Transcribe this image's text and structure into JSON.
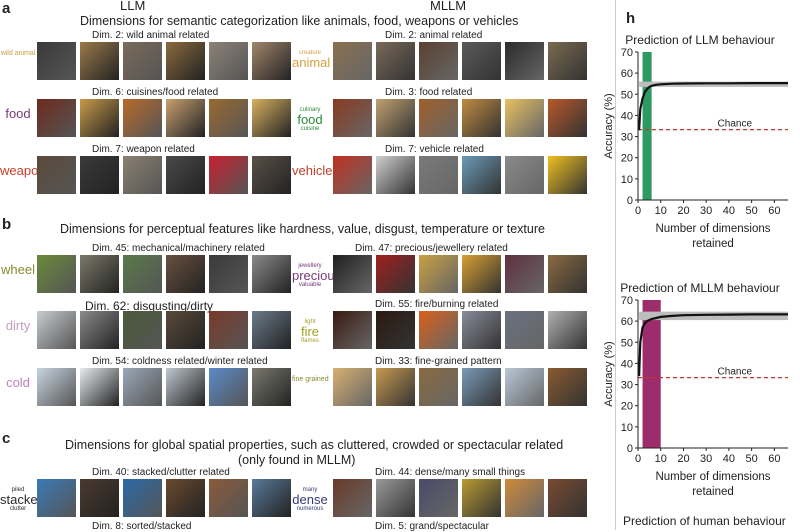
{
  "panel_letters": {
    "a": "a",
    "b": "b",
    "c": "c",
    "h": "h"
  },
  "columns": {
    "left": "LLM",
    "right": "MLLM"
  },
  "sections": {
    "a": {
      "title": "Dimensions for semantic categorization like animals, food, weapons or vehicles"
    },
    "b": {
      "title": "Dimensions for perceptual features like hardness, value, disgust, temperature or texture"
    },
    "c": {
      "title_line1": "Dimensions for global spatial properties, such as cluttered, crowded or spectacular related",
      "title_line2": "(only found in MLLM)"
    }
  },
  "rows": [
    {
      "left_label": "Dim. 2: wild animal related",
      "left_cloud": [
        "wild animal"
      ],
      "right_label": "Dim. 2: animal related",
      "right_cloud": [
        "creature",
        "animal"
      ]
    },
    {
      "left_label": "Dim. 6: cuisines/food related",
      "left_cloud": [
        "food"
      ],
      "right_label": "Dim. 3: food related",
      "right_cloud": [
        "culinary",
        "food",
        "cuisine"
      ]
    },
    {
      "left_label": "Dim. 7: weapon related",
      "left_cloud": [
        "weapon"
      ],
      "right_label": "Dim. 7: vehicle related",
      "right_cloud": [
        "vehicle"
      ]
    },
    {
      "left_label": "Dim. 45: mechanical/machinery related",
      "left_cloud": [
        "wheel"
      ],
      "right_label": "Dim. 47: precious/jewellery related",
      "right_cloud": [
        "jewellery",
        "precious",
        "valuable"
      ]
    },
    {
      "left_label": "Dim. 62: disgusting/dirty",
      "left_cloud": [
        "dirty"
      ],
      "right_label": "Dim. 55: fire/burning related",
      "right_cloud": [
        "light",
        "fire",
        "flames"
      ]
    },
    {
      "left_label": "Dim. 54: coldness related/winter related",
      "left_cloud": [
        "cold"
      ],
      "right_label": "Dim. 33: fine-grained pattern",
      "right_cloud": [
        "fine grained"
      ]
    },
    {
      "left_label": "Dim. 40: stacked/clutter related",
      "left_cloud": [
        "piled",
        "stacked",
        "clutter"
      ],
      "right_label": "Dim. 44: dense/many small things",
      "right_cloud": [
        "many",
        "dense",
        "numerous"
      ]
    },
    {
      "left_label": "Dim. 8: sorted/stacked",
      "left_cloud": [],
      "right_label": "Dim. 5: grand/spectacular",
      "right_cloud": []
    }
  ],
  "chart_data": [
    {
      "type": "line",
      "title": "Prediction of LLM behaviour",
      "xlabel": "Number of dimensions retained",
      "ylabel": "Accuracy (%)",
      "xlim": [
        0,
        66
      ],
      "ylim": [
        0,
        70
      ],
      "xticks": [
        0,
        10,
        20,
        30,
        40,
        50,
        60
      ],
      "yticks": [
        0,
        10,
        20,
        30,
        40,
        50,
        60,
        70
      ],
      "chance": {
        "label": "Chance",
        "value": 33.3
      },
      "highlight": {
        "x_range": [
          2,
          6
        ],
        "color": "#2e9a63"
      },
      "band": {
        "lower": 53.5,
        "upper": 56.0
      },
      "series": [
        {
          "x": [
            0.5,
            1,
            2,
            3,
            4,
            5,
            6,
            8,
            10,
            15,
            20,
            30,
            40,
            50,
            60,
            66
          ],
          "values": [
            33,
            43,
            48,
            51,
            52.5,
            53.5,
            54,
            54.5,
            54.7,
            55,
            55.1,
            55.2,
            55.2,
            55.3,
            55.3,
            55.3
          ]
        }
      ]
    },
    {
      "type": "line",
      "title": "Prediction of MLLM behaviour",
      "xlabel": "Number of dimensions retained",
      "ylabel": "Accuracy (%)",
      "xlim": [
        0,
        66
      ],
      "ylim": [
        0,
        70
      ],
      "xticks": [
        0,
        10,
        20,
        30,
        40,
        50,
        60
      ],
      "yticks": [
        0,
        10,
        20,
        30,
        40,
        50,
        60,
        70
      ],
      "chance": {
        "label": "Chance",
        "value": 33.3
      },
      "highlight": {
        "x_range": [
          2,
          10
        ],
        "color": "#9c2c6b"
      },
      "band": {
        "lower": 60.5,
        "upper": 64.5
      },
      "series": [
        {
          "x": [
            0.5,
            1,
            2,
            3,
            4,
            6,
            8,
            10,
            15,
            20,
            30,
            40,
            50,
            60,
            66
          ],
          "values": [
            34,
            50,
            57,
            59,
            60,
            61,
            61.5,
            62,
            62.5,
            62.8,
            63,
            63.1,
            63.2,
            63.2,
            63.2
          ]
        }
      ]
    }
  ],
  "footer_cut": "Prediction of human behaviour"
}
